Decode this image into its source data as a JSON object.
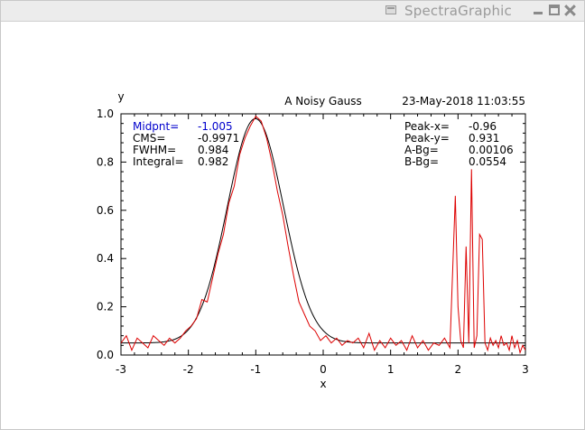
{
  "window": {
    "title": "SpectraGraphic"
  },
  "colors": {
    "data_series": "#dd0000",
    "fit_series": "#000000",
    "highlight_label": "#0000cc"
  },
  "icons": {
    "app": "app-icon",
    "minimize": "minimize-icon",
    "maximize": "maximize-icon",
    "close": "close-icon"
  },
  "plot": {
    "header_title": "A Noisy Gauss",
    "timestamp": "23-May-2018 11:03:55",
    "left_stats": [
      {
        "label": "Midpnt=",
        "value": "-1.005",
        "highlight": true
      },
      {
        "label": "CMS=",
        "value": "-0.9971",
        "highlight": false
      },
      {
        "label": "FWHM=",
        "value": "0.984",
        "highlight": false
      },
      {
        "label": "Integral=",
        "value": "0.982",
        "highlight": false
      }
    ],
    "right_stats": [
      {
        "label": "Peak-x=",
        "value": "-0.96"
      },
      {
        "label": "Peak-y=",
        "value": "0.931"
      },
      {
        "label": "A-Bg=",
        "value": "0.00106"
      },
      {
        "label": "B-Bg=",
        "value": "0.0554"
      }
    ]
  },
  "chart_data": {
    "type": "line",
    "title": "A Noisy Gauss",
    "xlabel": "x",
    "ylabel": "y",
    "xlim": [
      -3,
      3
    ],
    "ylim": [
      0,
      1.0
    ],
    "x_ticks": [
      "-3",
      "-2",
      "-1",
      "0",
      "1",
      "2",
      "3"
    ],
    "y_ticks": [
      "0.0",
      "0.2",
      "0.4",
      "0.6",
      "0.8",
      "1.0"
    ],
    "grid": false,
    "series": [
      {
        "color": "#dd0000",
        "x": [
          -3.0,
          -2.92,
          -2.84,
          -2.76,
          -2.68,
          -2.6,
          -2.52,
          -2.44,
          -2.36,
          -2.28,
          -2.2,
          -2.12,
          -2.04,
          -1.96,
          -1.88,
          -1.8,
          -1.72,
          -1.64,
          -1.56,
          -1.48,
          -1.4,
          -1.32,
          -1.24,
          -1.16,
          -1.08,
          -1.0,
          -0.92,
          -0.84,
          -0.76,
          -0.68,
          -0.6,
          -0.52,
          -0.44,
          -0.36,
          -0.28,
          -0.2,
          -0.12,
          -0.04,
          0.04,
          0.12,
          0.2,
          0.28,
          0.36,
          0.44,
          0.52,
          0.6,
          0.68,
          0.76,
          0.84,
          0.92,
          1.0,
          1.08,
          1.16,
          1.24,
          1.32,
          1.4,
          1.48,
          1.56,
          1.64,
          1.72,
          1.8,
          1.88,
          1.96,
          2.0,
          2.04,
          2.08,
          2.12,
          2.16,
          2.2,
          2.24,
          2.28,
          2.32,
          2.36,
          2.4,
          2.44,
          2.48,
          2.52,
          2.56,
          2.6,
          2.64,
          2.68,
          2.72,
          2.76,
          2.8,
          2.84,
          2.88,
          2.92,
          2.96,
          3.0
        ],
        "y": [
          0.05,
          0.08,
          0.02,
          0.07,
          0.05,
          0.03,
          0.08,
          0.06,
          0.04,
          0.07,
          0.05,
          0.07,
          0.1,
          0.12,
          0.15,
          0.23,
          0.22,
          0.32,
          0.42,
          0.5,
          0.63,
          0.7,
          0.83,
          0.9,
          0.95,
          0.99,
          0.97,
          0.9,
          0.8,
          0.68,
          0.58,
          0.45,
          0.33,
          0.22,
          0.17,
          0.12,
          0.1,
          0.06,
          0.08,
          0.05,
          0.07,
          0.04,
          0.06,
          0.05,
          0.07,
          0.03,
          0.09,
          0.02,
          0.06,
          0.03,
          0.07,
          0.04,
          0.06,
          0.02,
          0.08,
          0.03,
          0.06,
          0.02,
          0.05,
          0.04,
          0.07,
          0.03,
          0.66,
          0.2,
          0.06,
          0.03,
          0.45,
          0.05,
          0.77,
          0.03,
          0.08,
          0.5,
          0.48,
          0.05,
          0.02,
          0.07,
          0.04,
          0.06,
          0.03,
          0.08,
          0.04,
          0.05,
          0.02,
          0.08,
          0.03,
          0.06,
          0.01,
          0.04,
          0.02
        ]
      },
      {
        "color": "#000000",
        "type": "gaussian_fit",
        "amplitude": 0.93,
        "center": -1.005,
        "fwhm": 0.984,
        "baseline": 0.05
      }
    ]
  }
}
